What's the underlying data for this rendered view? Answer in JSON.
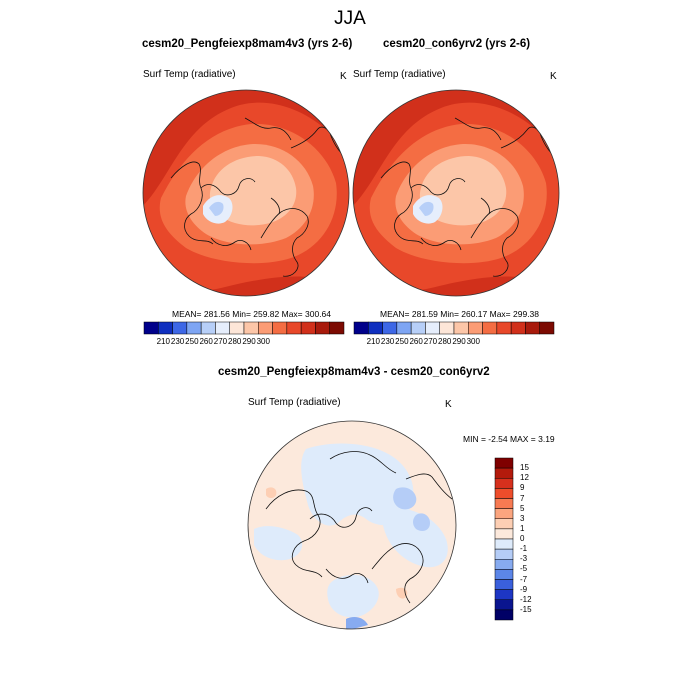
{
  "figure": {
    "title": "JJA"
  },
  "panels": {
    "left": {
      "title": "cesm20_Pengfeiexp8mam4v3 (yrs 2-6)",
      "variable": "Surf Temp (radiative)",
      "units": "K",
      "stats": "MEAN= 281.56  Min= 259.82  Max= 300.64"
    },
    "right": {
      "title": "cesm20_con6yrv2 (yrs 2-6)",
      "variable": "Surf Temp (radiative)",
      "units": "K",
      "stats": "MEAN= 281.59  Min= 260.17  Max= 299.38"
    },
    "diff": {
      "title": "cesm20_Pengfeiexp8mam4v3 - cesm20_con6yrv2",
      "variable": "Surf Temp (radiative)",
      "units": "K",
      "stats": "MIN =  -2.54 MAX =   3.19"
    }
  },
  "colorbars": {
    "abs": {
      "labels": [
        "210",
        "230",
        "250",
        "260",
        "270",
        "280",
        "290",
        "300"
      ],
      "colors": [
        "#00008a",
        "#0f2fbf",
        "#3d67e6",
        "#7ea5f3",
        "#b7cff8",
        "#e6eefc",
        "#fde6d8",
        "#fcc6a8",
        "#fb9c75",
        "#f46d43",
        "#e8482a",
        "#d1301b",
        "#a81a0c",
        "#7c0a02"
      ]
    },
    "diff": {
      "labels": [
        "15",
        "12",
        "9",
        "7",
        "5",
        "3",
        "1",
        "0",
        "-1",
        "-3",
        "-5",
        "-7",
        "-9",
        "-12",
        "-15"
      ],
      "colors": [
        "#7f0000",
        "#b31a0c",
        "#d6301d",
        "#ee4d2b",
        "#f77a52",
        "#fba57f",
        "#fdcfb4",
        "#fce9dc",
        "#deebfb",
        "#b5cdf7",
        "#87abf0",
        "#5c86e8",
        "#3a60dc",
        "#1d36c4",
        "#0a158f",
        "#000066"
      ]
    }
  }
}
